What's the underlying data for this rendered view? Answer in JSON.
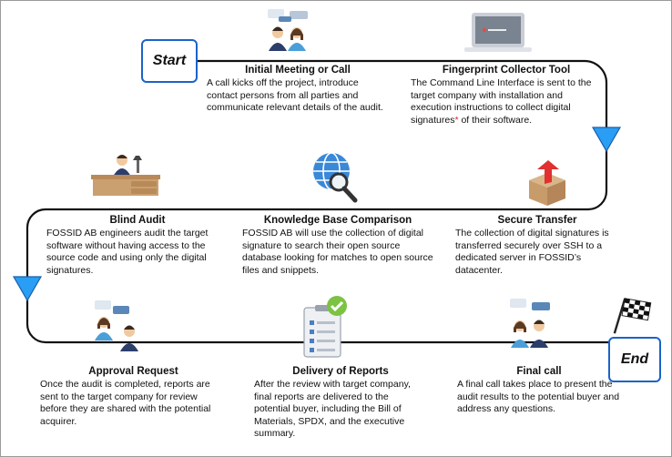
{
  "terminals": {
    "start": "Start",
    "end": "End"
  },
  "steps": [
    {
      "id": "initial-meeting",
      "title": "Initial Meeting or Call",
      "text": "A call kicks off the project, introduce contact persons from all parties and communicate relevant details of the audit.",
      "icon": "meeting-people-icon"
    },
    {
      "id": "fingerprint-tool",
      "title": "Fingerprint Collector Tool",
      "text": "The Command Line Interface is sent to the target company with installation and execution instructions to collect digital signatures",
      "note_marker": "*",
      "text_after": " of their software.",
      "icon": "laptop-icon"
    },
    {
      "id": "secure-transfer",
      "title": "Secure Transfer",
      "text": "The collection of digital signatures is transferred securely over SSH to a dedicated server in FOSSID’s datacenter.",
      "icon": "box-upload-icon"
    },
    {
      "id": "knowledge-base",
      "title": "Knowledge Base Comparison",
      "text": "FOSSID AB will use the collection of digital signature to search their open source database looking for matches to open source files and snippets.",
      "icon": "globe-search-icon"
    },
    {
      "id": "blind-audit",
      "title": "Blind Audit",
      "text": "FOSSID AB engineers audit the target software without having access to the source code and using only the digital signatures.",
      "icon": "engineer-desk-icon"
    },
    {
      "id": "approval-request",
      "title": "Approval Request",
      "text": "Once the audit is completed, reports are sent to the target company for review before they are shared with the potential acquirer.",
      "icon": "approval-people-icon"
    },
    {
      "id": "delivery-reports",
      "title": "Delivery of Reports",
      "text": "After the review with target company, final reports are delivered to the potential buyer, including the Bill of Materials, SPDX, and the executive summary.",
      "icon": "checklist-icon"
    },
    {
      "id": "final-call",
      "title": "Final call",
      "text": "A final call takes place to present the audit results to the potential buyer and address any questions.",
      "icon": "meeting-people-icon"
    }
  ],
  "colors": {
    "path": "#111111",
    "arrow_fill": "#2a9df4",
    "arrow_stroke": "#1a5fa8",
    "terminal_border": "#1a63c9",
    "note_marker": "#d9262c"
  }
}
